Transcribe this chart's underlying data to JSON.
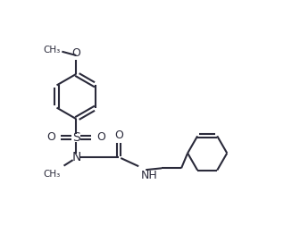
{
  "background_color": "#ffffff",
  "line_color": "#2a2a3a",
  "bond_width": 1.5,
  "figure_width": 3.27,
  "figure_height": 2.62,
  "dpi": 100,
  "xlim": [
    0,
    9.5
  ],
  "ylim": [
    0,
    8.5
  ]
}
